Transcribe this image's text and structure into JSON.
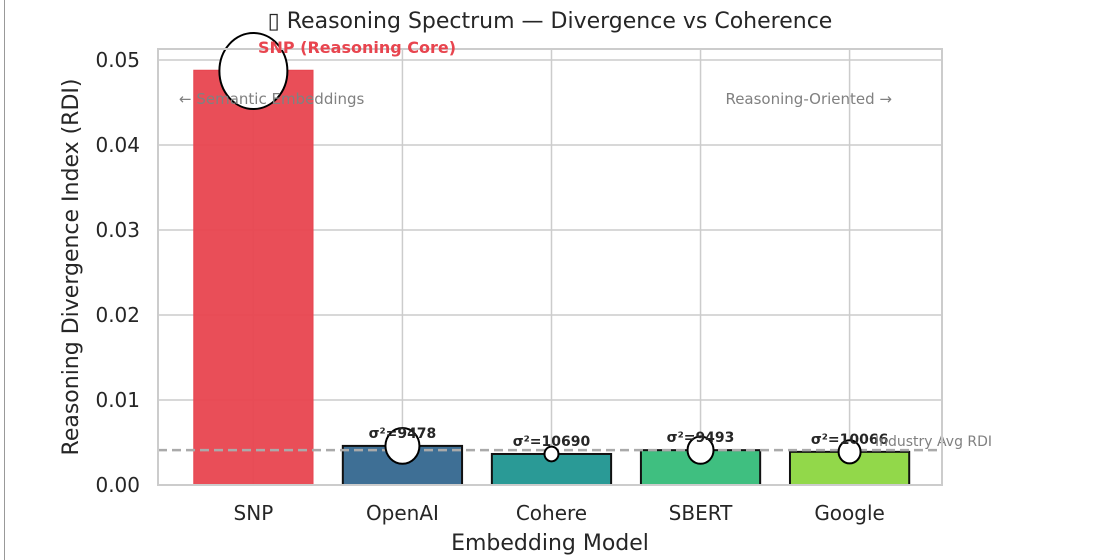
{
  "chart_data": {
    "type": "bar",
    "title": "▯ Reasoning Spectrum — Divergence vs Coherence",
    "xlabel": "Embedding Model",
    "ylabel": "Reasoning Divergence Index (RDI)",
    "categories": [
      "SNP",
      "OpenAI",
      "Cohere",
      "SBERT",
      "Google"
    ],
    "values": [
      0.0488,
      0.0046,
      0.00365,
      0.0041,
      0.0039
    ],
    "bar_colors": [
      "#e8454f",
      "#3e6f95",
      "#2a9a96",
      "#3fbf80",
      "#92d84a"
    ],
    "bar_labels": [
      "",
      "σ²=9478",
      "σ²=10690",
      "σ²=9493",
      "σ²=10066"
    ],
    "ylim": [
      0,
      0.0513
    ],
    "yticks": [
      "0.00",
      "0.01",
      "0.02",
      "0.03",
      "0.04",
      "0.05"
    ],
    "ytick_values": [
      0,
      0.01,
      0.02,
      0.03,
      0.04,
      0.05
    ],
    "grid": true,
    "reference_line": {
      "label": "Industry Avg RDI",
      "value": 0.0041,
      "color": "#aaaaaa"
    },
    "annotations": {
      "highlight": "SNP (Reasoning Core)",
      "highlight_color": "#e8454f",
      "left_note": "← Semantic Embeddings",
      "right_note": "Reasoning-Oriented →"
    }
  }
}
